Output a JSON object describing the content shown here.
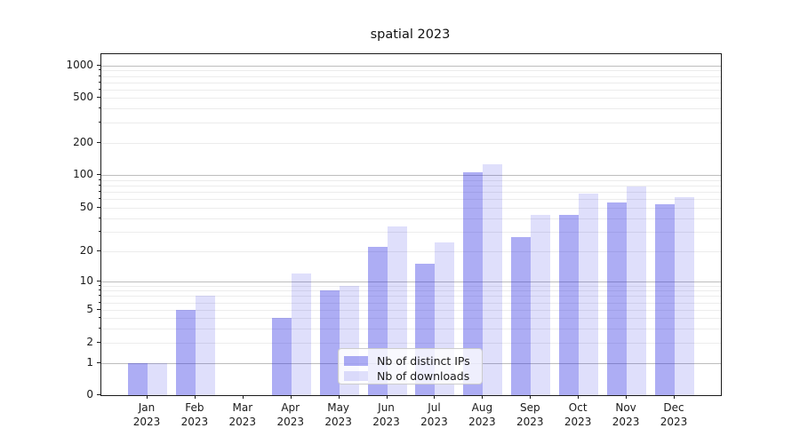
{
  "figure": {
    "title": "spatial 2023"
  },
  "chart_data": {
    "type": "bar",
    "title": "spatial 2023",
    "categories": [
      "Jan 2023",
      "Feb 2023",
      "Mar 2023",
      "Apr 2023",
      "May 2023",
      "Jun 2023",
      "Jul 2023",
      "Aug 2023",
      "Sep 2023",
      "Oct 2023",
      "Nov 2023",
      "Dec 2023"
    ],
    "series": [
      {
        "name": "Nb of distinct IPs",
        "color": "rgba(40,40,225,0.38)",
        "values": [
          1,
          5,
          0,
          4,
          8,
          22,
          15,
          105,
          27,
          43,
          56,
          54
        ]
      },
      {
        "name": "Nb of downloads",
        "color": "rgba(40,40,225,0.15)",
        "values": [
          1,
          7,
          0,
          12,
          9,
          34,
          24,
          125,
          43,
          67,
          78,
          63
        ]
      }
    ],
    "xlabel": "",
    "ylabel": "",
    "yscale": "symlog",
    "ylim": [
      0,
      1300
    ],
    "yticks": [
      0,
      1,
      2,
      5,
      10,
      20,
      50,
      100,
      200,
      500,
      1000
    ],
    "grid": "both",
    "legend_position": "lower center (inside axes)",
    "colors": {
      "background": "#ffffff",
      "major_grid": "#bdbdbd",
      "minor_grid": "#ececec",
      "spine": "#1a1a1a"
    }
  }
}
